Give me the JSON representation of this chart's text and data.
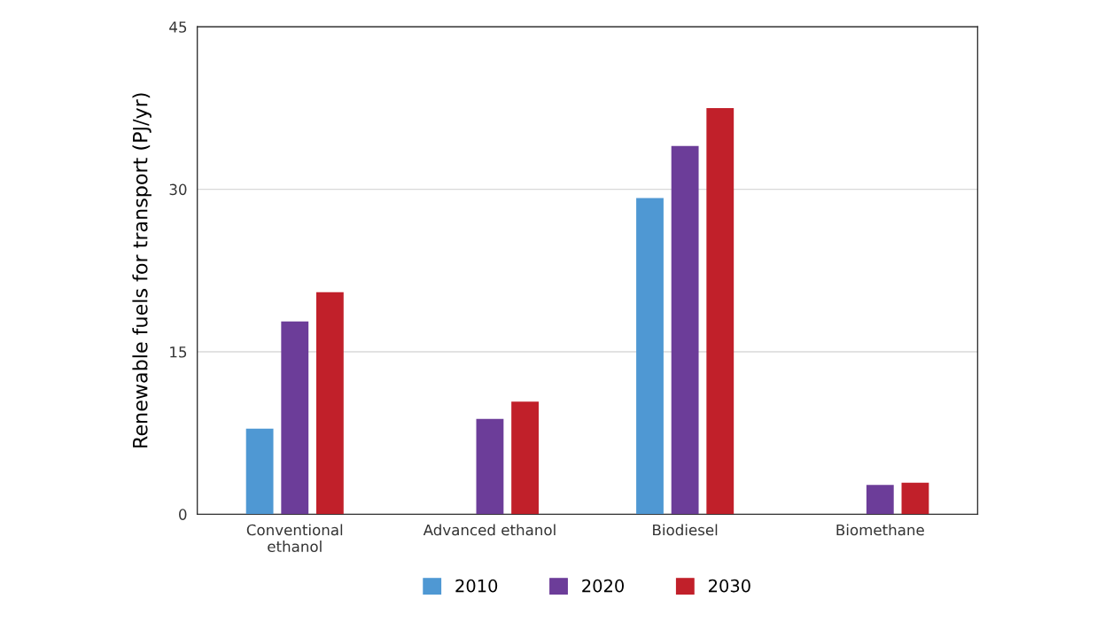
{
  "chart_data": {
    "type": "bar",
    "ylabel": "Renewable fuels for transport (PJ/yr)",
    "categories": [
      "Conventional\nethanol",
      "Advanced ethanol",
      "Biodiesel",
      "Biomethane"
    ],
    "series": [
      {
        "name": "2010",
        "color": "#4f98d3",
        "values": [
          7.9,
          null,
          29.2,
          null
        ]
      },
      {
        "name": "2020",
        "color": "#6c3d99",
        "values": [
          17.8,
          8.8,
          34.0,
          2.7
        ]
      },
      {
        "name": "2030",
        "color": "#c1202a",
        "values": [
          20.5,
          10.4,
          37.5,
          2.9
        ]
      }
    ],
    "ylim": [
      0,
      45
    ],
    "yticks": [
      0,
      15,
      30,
      45
    ],
    "grid": "y",
    "legend": "bottom"
  }
}
